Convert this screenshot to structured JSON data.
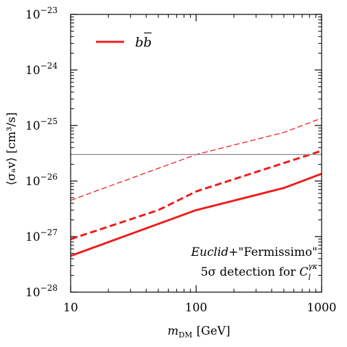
{
  "chart_data": {
    "type": "line",
    "xscale": "log",
    "yscale": "log",
    "xlim": [
      10,
      1000
    ],
    "ylim": [
      1e-28,
      1e-23
    ],
    "grid": false,
    "legend": {
      "position": "top-left",
      "entries": [
        {
          "label_main": "b",
          "label_bar": "b",
          "color": "#ee1c1c"
        }
      ]
    },
    "xlabel": {
      "symbol": "m",
      "sub": "DM",
      "unit": "[GeV]"
    },
    "ylabel": "⟨σₐv⟩ [cm³/s]",
    "x_ticks": [
      {
        "value": 10,
        "label": "10"
      },
      {
        "value": 100,
        "label": "100"
      },
      {
        "value": 1000,
        "label": "1000"
      }
    ],
    "y_ticks": [
      {
        "value": -28,
        "base": "10",
        "exp": "−28"
      },
      {
        "value": -27,
        "base": "10",
        "exp": "−27"
      },
      {
        "value": -26,
        "base": "10",
        "exp": "−26"
      },
      {
        "value": -25,
        "base": "10",
        "exp": "−25"
      },
      {
        "value": -24,
        "base": "10",
        "exp": "−24"
      },
      {
        "value": -23,
        "base": "10",
        "exp": "−23"
      }
    ],
    "series": [
      {
        "key": "solid",
        "style": "solid-thick",
        "color": "#ee1c1c",
        "points": [
          [
            10,
            4.5e-28
          ],
          [
            100,
            3e-27
          ],
          [
            500,
            7.5e-27
          ],
          [
            1000,
            1.35e-26
          ]
        ]
      },
      {
        "key": "dashed-thick",
        "style": "dashed-thick",
        "color": "#ee1c1c",
        "points": [
          [
            10,
            9e-28
          ],
          [
            50,
            3e-27
          ],
          [
            100,
            6.5e-27
          ],
          [
            1000,
            3.5e-26
          ]
        ]
      },
      {
        "key": "dashed-thin",
        "style": "dashed-thin",
        "color": "#ee1c1c",
        "points": [
          [
            10,
            4.5e-27
          ],
          [
            100,
            3e-26
          ],
          [
            500,
            7.5e-26
          ],
          [
            1000,
            1.35e-25
          ]
        ]
      }
    ],
    "reference_line": {
      "y": 3e-26,
      "color": "#888888"
    },
    "annotation": {
      "line1_italic": "Euclid",
      "line1_rest": "+\"Fermissimo\"",
      "line2_text": "5σ detection for ",
      "line2_symbol": "C",
      "line2_sub": "l",
      "line2_sup": "γκ"
    }
  }
}
